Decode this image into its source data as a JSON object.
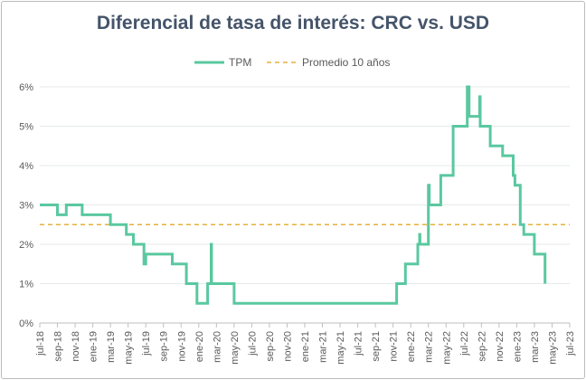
{
  "chart_data": {
    "type": "line",
    "title": "Diferencial de tasa de interés: CRC vs. USD",
    "xlabel": "",
    "ylabel": "",
    "ylim": [
      0,
      6
    ],
    "y_ticks": [
      "0%",
      "1%",
      "2%",
      "3%",
      "4%",
      "5%",
      "6%"
    ],
    "x_ticks": [
      "jul-18",
      "sep-18",
      "nov-18",
      "ene-19",
      "mar-19",
      "may-19",
      "jul-19",
      "sep-19",
      "nov-19",
      "ene-20",
      "mar-20",
      "may-20",
      "jul-20",
      "sep-20",
      "nov-20",
      "ene-21",
      "mar-21",
      "may-21",
      "jul-21",
      "sep-21",
      "nov-21",
      "ene-22",
      "mar-22",
      "may-22",
      "jul-22",
      "sep-22",
      "nov-22",
      "ene-23",
      "mar-23",
      "may-23",
      "jul-23"
    ],
    "legend": [
      "TPM",
      "Promedio 10 años"
    ],
    "series": [
      {
        "name": "TPM",
        "color": "#5ac8a0",
        "points": [
          [
            0,
            3.0
          ],
          [
            1.0,
            3.0
          ],
          [
            1.0,
            2.75
          ],
          [
            1.5,
            2.75
          ],
          [
            1.5,
            3.0
          ],
          [
            2.4,
            3.0
          ],
          [
            2.4,
            2.75
          ],
          [
            4.0,
            2.75
          ],
          [
            4.0,
            2.5
          ],
          [
            4.9,
            2.5
          ],
          [
            4.9,
            2.25
          ],
          [
            5.3,
            2.25
          ],
          [
            5.3,
            2.0
          ],
          [
            5.9,
            2.0
          ],
          [
            5.9,
            1.5
          ],
          [
            6.0,
            1.5
          ],
          [
            6.0,
            1.75
          ],
          [
            7.5,
            1.75
          ],
          [
            7.5,
            1.5
          ],
          [
            8.3,
            1.5
          ],
          [
            8.3,
            1.0
          ],
          [
            8.9,
            1.0
          ],
          [
            8.9,
            0.5
          ],
          [
            9.5,
            0.5
          ],
          [
            9.5,
            1.0
          ],
          [
            9.7,
            1.0
          ],
          [
            9.7,
            2.0
          ],
          [
            9.72,
            2.0
          ],
          [
            9.72,
            1.0
          ],
          [
            11.0,
            1.0
          ],
          [
            11.0,
            0.5
          ],
          [
            20.2,
            0.5
          ],
          [
            20.2,
            1.0
          ],
          [
            20.7,
            1.0
          ],
          [
            20.7,
            1.5
          ],
          [
            21.4,
            1.5
          ],
          [
            21.4,
            2.0
          ],
          [
            21.5,
            2.0
          ],
          [
            21.5,
            2.25
          ],
          [
            21.52,
            2.25
          ],
          [
            21.52,
            2.0
          ],
          [
            22.0,
            2.0
          ],
          [
            22.0,
            3.5
          ],
          [
            22.05,
            3.5
          ],
          [
            22.05,
            3.0
          ],
          [
            22.7,
            3.0
          ],
          [
            22.7,
            3.75
          ],
          [
            23.4,
            3.75
          ],
          [
            23.4,
            5.0
          ],
          [
            24.2,
            5.0
          ],
          [
            24.2,
            6.0
          ],
          [
            24.3,
            6.0
          ],
          [
            24.3,
            5.25
          ],
          [
            24.9,
            5.25
          ],
          [
            24.9,
            5.75
          ],
          [
            24.93,
            5.75
          ],
          [
            24.93,
            5.0
          ],
          [
            25.5,
            5.0
          ],
          [
            25.5,
            4.5
          ],
          [
            26.2,
            4.5
          ],
          [
            26.2,
            4.25
          ],
          [
            26.8,
            4.25
          ],
          [
            26.8,
            3.75
          ],
          [
            26.9,
            3.75
          ],
          [
            26.9,
            3.5
          ],
          [
            27.2,
            3.5
          ],
          [
            27.2,
            2.5
          ],
          [
            27.4,
            2.5
          ],
          [
            27.4,
            2.25
          ],
          [
            28.0,
            2.25
          ],
          [
            28.0,
            1.75
          ],
          [
            28.6,
            1.75
          ],
          [
            28.6,
            1.0
          ]
        ]
      },
      {
        "name": "Promedio 10 años",
        "color": "#e6b13c",
        "value": 2.5
      }
    ]
  }
}
